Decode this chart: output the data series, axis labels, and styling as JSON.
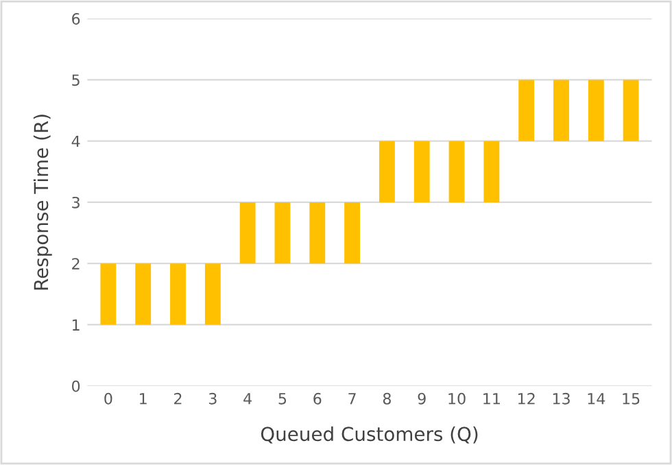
{
  "chart_data": {
    "type": "bar",
    "xlabel": "Queued Customers (Q)",
    "ylabel": "Response Time (R)",
    "categories": [
      "0",
      "1",
      "2",
      "3",
      "4",
      "5",
      "6",
      "7",
      "8",
      "9",
      "10",
      "11",
      "12",
      "13",
      "14",
      "15"
    ],
    "values": [
      1,
      1,
      1,
      1,
      1,
      1,
      1,
      1,
      1,
      1,
      1,
      1,
      1,
      1,
      1,
      1
    ],
    "base": [
      1,
      1,
      1,
      1,
      2,
      2,
      2,
      2,
      3,
      3,
      3,
      3,
      4,
      4,
      4,
      4
    ],
    "color": "#ffc000",
    "ylim": [
      0,
      6
    ],
    "yticks": [
      0,
      1,
      2,
      3,
      4,
      5,
      6
    ],
    "grid": "y"
  }
}
